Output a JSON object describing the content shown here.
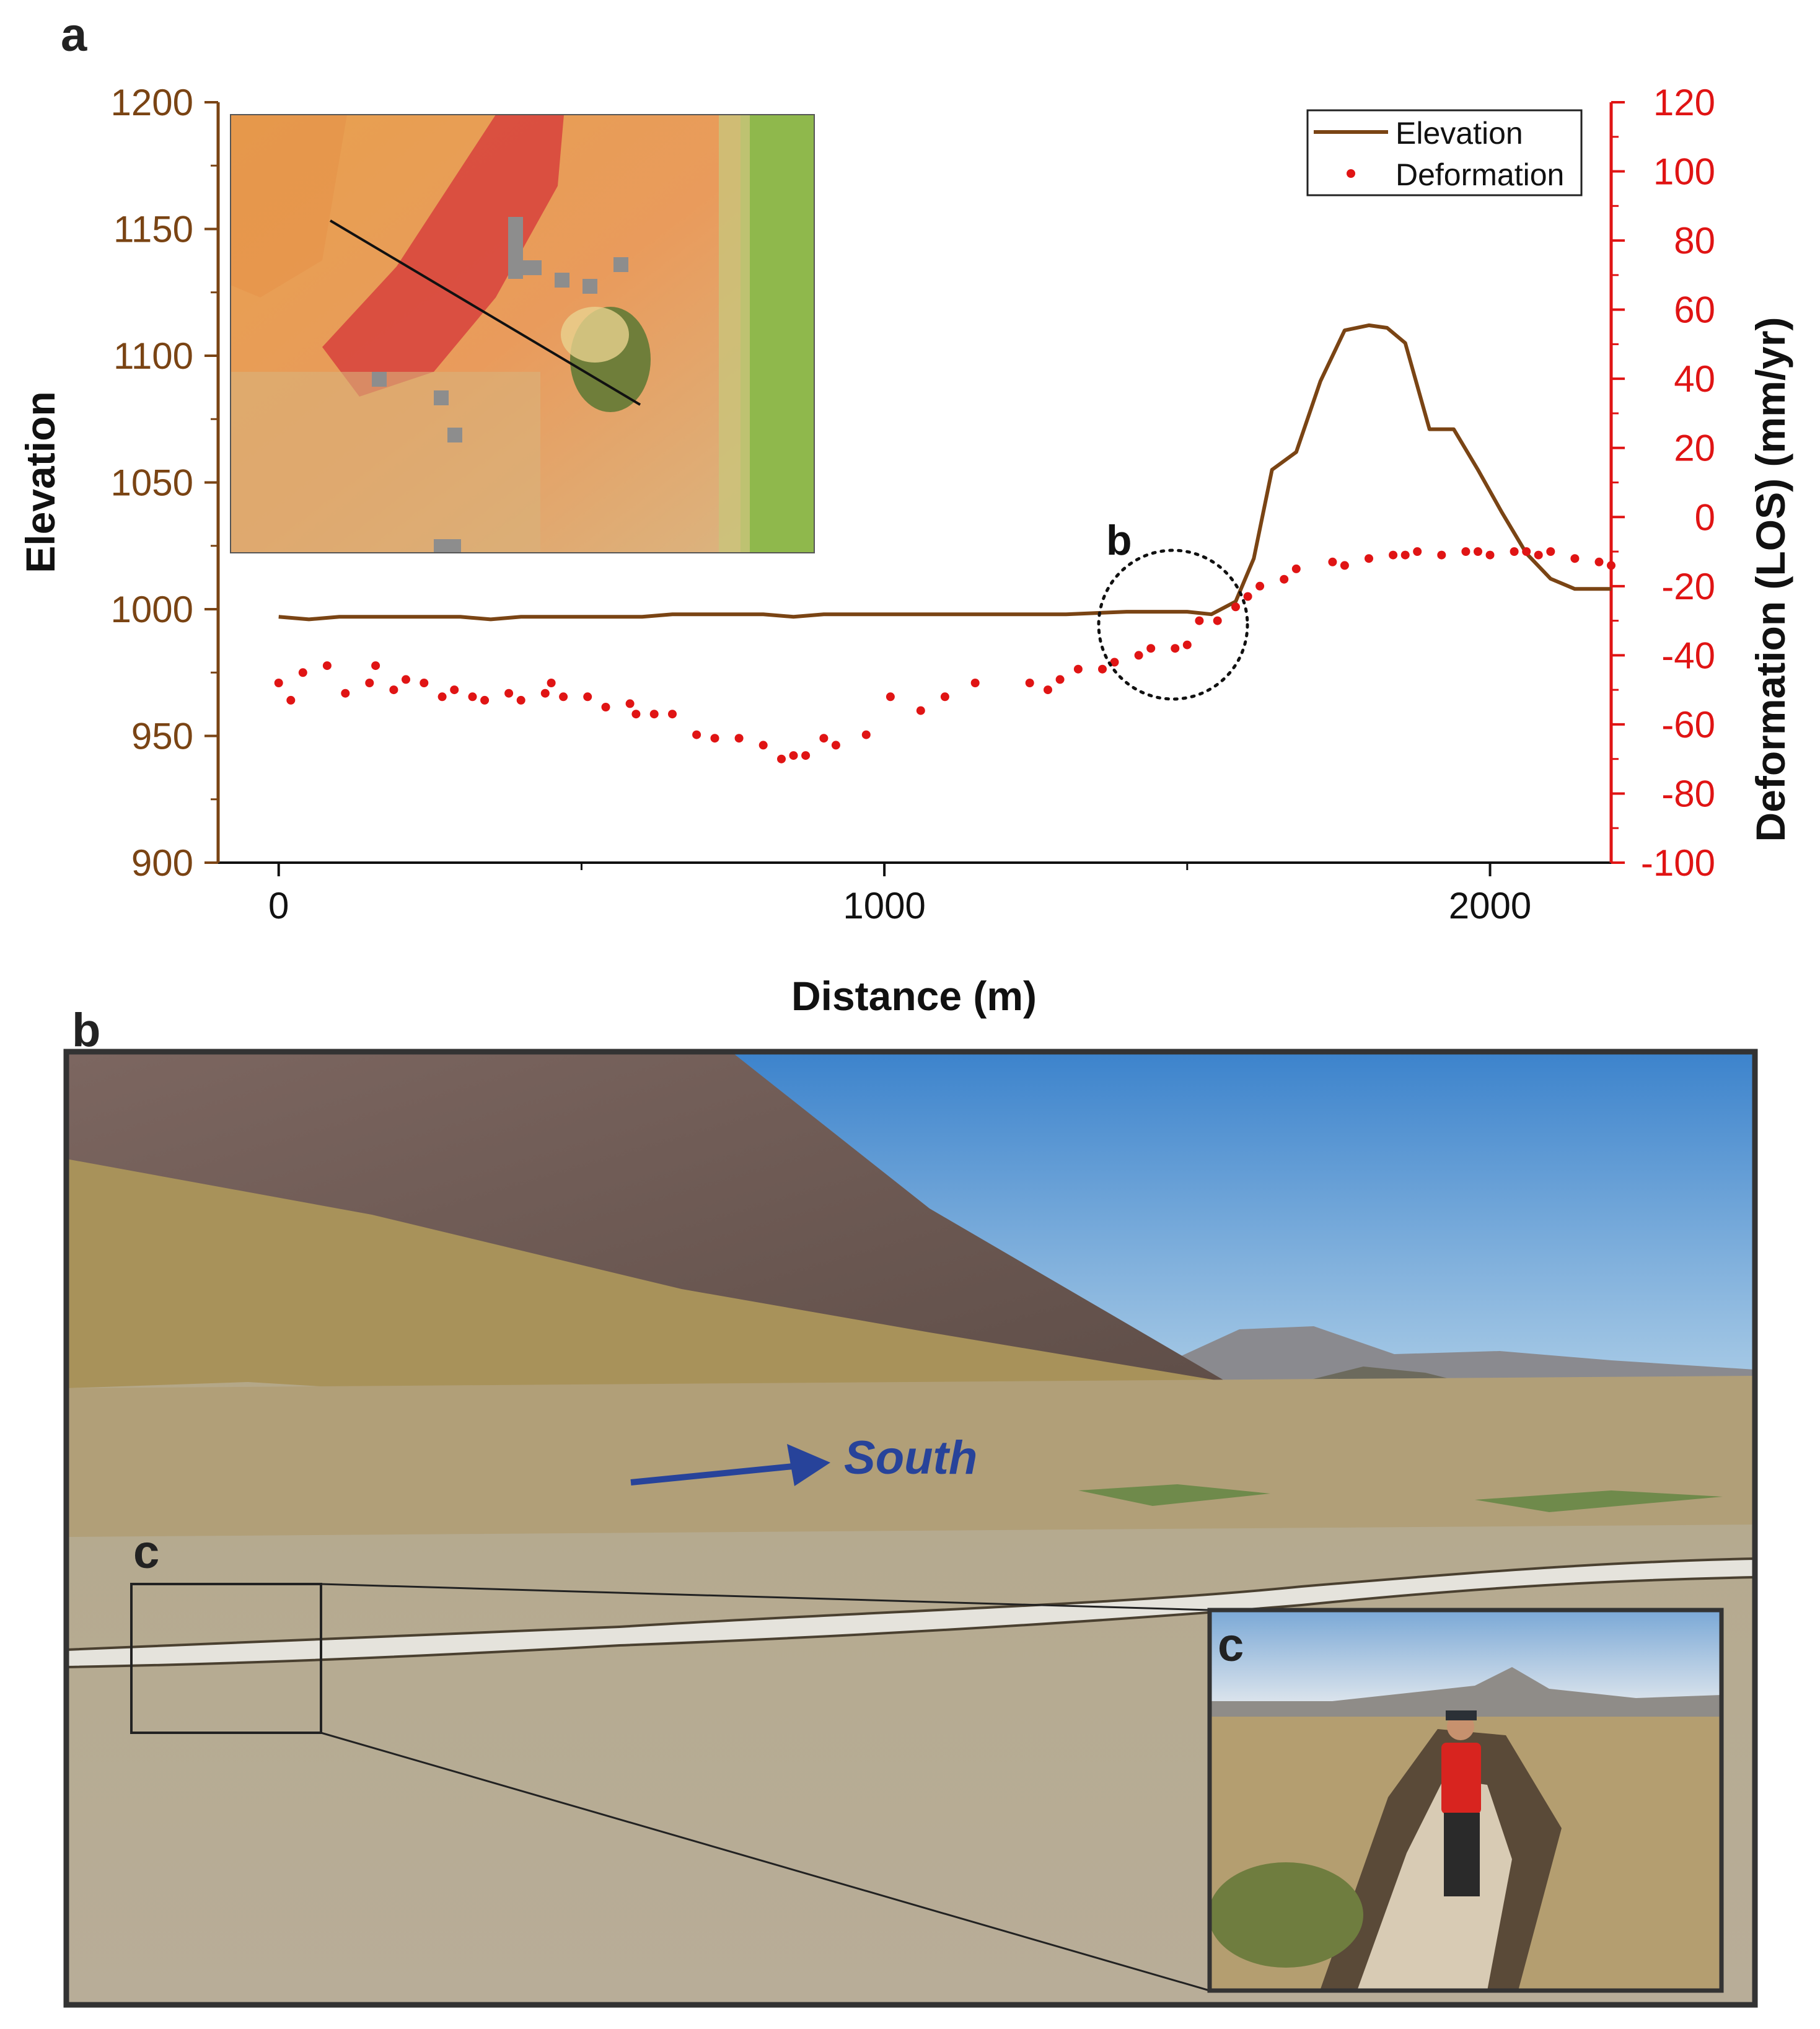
{
  "panel_labels": {
    "a": "a",
    "b": "b",
    "c_box": "c",
    "c_inset": "c",
    "b_marker": "b"
  },
  "colors": {
    "elevation": "#7a4414",
    "deformation": "#e01414",
    "axis_left": "#7a4414",
    "axis_right": "#e01414",
    "arrow": "#27439a"
  },
  "photo": {
    "direction_label": "South"
  },
  "chart_data": {
    "type": "line",
    "xlabel": "Distance (m)",
    "ylabel": "Elevation",
    "y2label": "Deformation (LOS) (mm/yr)",
    "xlim": [
      -100,
      2200
    ],
    "ylim": [
      900,
      1200
    ],
    "y2lim": [
      -100,
      120
    ],
    "xticks": [
      "0",
      "1000",
      "2000"
    ],
    "yticks": [
      "900",
      "950",
      "1000",
      "1050",
      "1100",
      "1150",
      "1200"
    ],
    "y2ticks": [
      "-100",
      "-80",
      "-60",
      "-40",
      "-20",
      "0",
      "20",
      "40",
      "60",
      "80",
      "100",
      "120"
    ],
    "legend": {
      "placement": "top-right",
      "entries": [
        "Elevation",
        "Deformation"
      ]
    },
    "series": [
      {
        "name": "Elevation",
        "style": "line",
        "axis": "left",
        "x": [
          0,
          50,
          100,
          200,
          300,
          350,
          400,
          500,
          600,
          650,
          700,
          800,
          850,
          900,
          1000,
          1100,
          1200,
          1300,
          1400,
          1500,
          1540,
          1580,
          1610,
          1640,
          1680,
          1720,
          1760,
          1800,
          1830,
          1860,
          1900,
          1940,
          1980,
          2020,
          2060,
          2100,
          2140,
          2200
        ],
        "y": [
          997,
          996,
          997,
          997,
          997,
          996,
          997,
          997,
          997,
          998,
          998,
          998,
          997,
          998,
          998,
          998,
          998,
          998,
          999,
          999,
          998,
          1003,
          1020,
          1055,
          1062,
          1090,
          1110,
          1112,
          1111,
          1105,
          1071,
          1071,
          1055,
          1038,
          1022,
          1012,
          1008,
          1008
        ]
      },
      {
        "name": "Deformation",
        "style": "scatter",
        "axis": "right",
        "x": [
          0,
          20,
          40,
          80,
          110,
          150,
          160,
          190,
          210,
          240,
          270,
          290,
          320,
          340,
          380,
          400,
          440,
          450,
          470,
          510,
          540,
          580,
          590,
          620,
          650,
          690,
          720,
          760,
          800,
          830,
          850,
          870,
          900,
          920,
          970,
          1010,
          1060,
          1100,
          1150,
          1240,
          1270,
          1290,
          1320,
          1360,
          1380,
          1420,
          1440,
          1480,
          1500,
          1520,
          1550,
          1580,
          1600,
          1620,
          1660,
          1680,
          1740,
          1760,
          1800,
          1840,
          1860,
          1880,
          1920,
          1960,
          1980,
          2000,
          2040,
          2060,
          2080,
          2100,
          2140,
          2180,
          2200
        ],
        "y": [
          -48,
          -53,
          -45,
          -43,
          -51,
          -48,
          -43,
          -50,
          -47,
          -48,
          -52,
          -50,
          -52,
          -53,
          -51,
          -53,
          -51,
          -48,
          -52,
          -52,
          -55,
          -54,
          -57,
          -57,
          -57,
          -63,
          -64,
          -64,
          -66,
          -70,
          -69,
          -69,
          -64,
          -66,
          -63,
          -52,
          -56,
          -52,
          -48,
          -48,
          -50,
          -47,
          -44,
          -44,
          -42,
          -40,
          -38,
          -38,
          -37,
          -30,
          -30,
          -26,
          -23,
          -20,
          -18,
          -15,
          -13,
          -14,
          -12,
          -11,
          -11,
          -10,
          -11,
          -10,
          -10,
          -11,
          -10,
          -10,
          -11,
          -10,
          -12,
          -13,
          -14
        ]
      }
    ]
  }
}
